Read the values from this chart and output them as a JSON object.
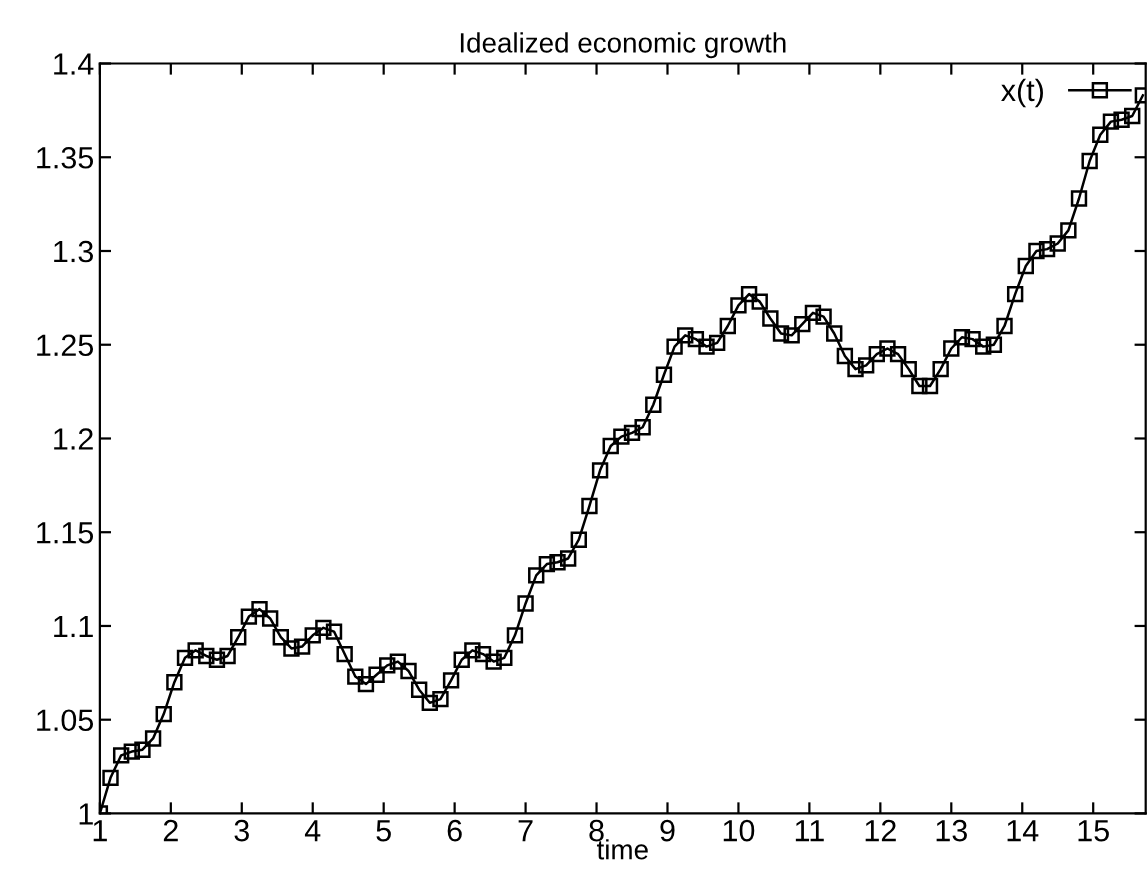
{
  "chart_data": {
    "type": "line",
    "title": "Idealized economic growth",
    "xlabel": "time",
    "x": [
      1,
      1.15,
      1.3,
      1.45,
      1.6,
      1.75,
      1.9,
      2.05,
      2.2,
      2.35,
      2.5,
      2.65,
      2.8,
      2.95,
      3.1,
      3.25,
      3.4,
      3.55,
      3.7,
      3.85,
      4,
      4.15,
      4.3,
      4.45,
      4.6,
      4.75,
      4.9,
      5.05,
      5.2,
      5.35,
      5.5,
      5.65,
      5.8,
      5.95,
      6.1,
      6.25,
      6.4,
      6.55,
      6.7,
      6.85,
      7,
      7.15,
      7.3,
      7.45,
      7.6,
      7.75,
      7.9,
      8.05,
      8.2,
      8.35,
      8.5,
      8.65,
      8.8,
      8.95,
      9.1,
      9.25,
      9.4,
      9.55,
      9.7,
      9.85,
      10,
      10.15,
      10.3,
      10.45,
      10.6,
      10.75,
      10.9,
      11.05,
      11.2,
      11.35,
      11.5,
      11.65,
      11.8,
      11.95,
      12.1,
      12.25,
      12.4,
      12.55,
      12.7,
      12.85,
      13,
      13.15,
      13.3,
      13.45,
      13.6,
      13.75,
      13.9,
      14.05,
      14.2,
      14.35,
      14.5,
      14.65,
      14.8,
      14.95,
      15.1,
      15.25,
      15.4,
      15.55,
      15.7
    ],
    "series": [
      {
        "name": "x(t)",
        "color": "#000000",
        "values": [
          1.0,
          1.019,
          1.031,
          1.033,
          1.034,
          1.04,
          1.053,
          1.07,
          1.083,
          1.087,
          1.084,
          1.082,
          1.084,
          1.094,
          1.105,
          1.109,
          1.104,
          1.094,
          1.088,
          1.089,
          1.095,
          1.099,
          1.097,
          1.085,
          1.073,
          1.069,
          1.074,
          1.079,
          1.081,
          1.076,
          1.066,
          1.059,
          1.061,
          1.071,
          1.082,
          1.087,
          1.085,
          1.081,
          1.083,
          1.095,
          1.112,
          1.127,
          1.133,
          1.134,
          1.136,
          1.146,
          1.164,
          1.183,
          1.196,
          1.201,
          1.203,
          1.206,
          1.218,
          1.234,
          1.249,
          1.255,
          1.253,
          1.249,
          1.251,
          1.26,
          1.271,
          1.277,
          1.273,
          1.264,
          1.256,
          1.255,
          1.261,
          1.267,
          1.265,
          1.256,
          1.244,
          1.237,
          1.239,
          1.245,
          1.248,
          1.245,
          1.237,
          1.228,
          1.228,
          1.237,
          1.248,
          1.254,
          1.253,
          1.249,
          1.25,
          1.26,
          1.277,
          1.292,
          1.3,
          1.301,
          1.304,
          1.311,
          1.328,
          1.348,
          1.362,
          1.369,
          1.37,
          1.372,
          1.383
        ]
      }
    ],
    "xlim": [
      1,
      15.74
    ],
    "xticks": [
      1,
      2,
      3,
      4,
      5,
      6,
      7,
      8,
      9,
      10,
      11,
      12,
      13,
      14,
      15
    ],
    "ylim": [
      1,
      1.4
    ],
    "yticks": [
      1,
      1.05,
      1.1,
      1.15,
      1.2,
      1.25,
      1.3,
      1.35,
      1.4
    ],
    "marker": "square",
    "line_style": "solid",
    "legend": "top right",
    "grid": false
  }
}
